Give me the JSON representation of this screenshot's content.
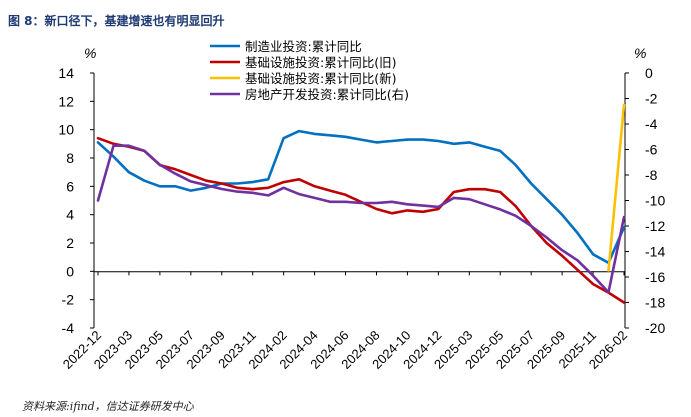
{
  "figure": {
    "title": "图 8：新口径下，基建增速也有明显回升",
    "source": "资料来源:ifind，信达证券研发中心"
  },
  "chart_data": {
    "type": "line",
    "title": "新口径下，基建增速也有明显回升",
    "left_axis": {
      "unit": "%",
      "ylim": [
        -4,
        14
      ],
      "ticks": [
        -4,
        -2,
        0,
        2,
        4,
        6,
        8,
        10,
        12,
        14
      ]
    },
    "right_axis": {
      "unit": "%",
      "ylim": [
        -20,
        0
      ],
      "ticks": [
        -20,
        -18,
        -16,
        -14,
        -12,
        -10,
        -8,
        -6,
        -4,
        -2,
        0
      ]
    },
    "x_tick_labels": [
      "2022-12",
      "2023-03",
      "2023-05",
      "2023-07",
      "2023-09",
      "2023-11",
      "2024-02",
      "2024-04",
      "2024-06",
      "2024-08",
      "2024-10",
      "2024-12",
      "2025-03",
      "2025-05",
      "2025-07",
      "2025-09",
      "2025-11",
      "2026-02"
    ],
    "x": [
      "2022-12",
      "2023-02",
      "2023-03",
      "2023-04",
      "2023-05",
      "2023-06",
      "2023-07",
      "2023-08",
      "2023-09",
      "2023-10",
      "2023-11",
      "2023-12",
      "2024-02",
      "2024-03",
      "2024-04",
      "2024-05",
      "2024-06",
      "2024-07",
      "2024-08",
      "2024-09",
      "2024-10",
      "2024-11",
      "2024-12",
      "2025-02",
      "2025-03",
      "2025-04",
      "2025-05",
      "2025-06",
      "2025-07",
      "2025-08",
      "2025-09",
      "2025-10",
      "2025-11",
      "2025-12",
      "2026-02"
    ],
    "series": [
      {
        "name": "制造业投资:累计同比",
        "color": "#0070c0",
        "axis": "left",
        "values": [
          9.1,
          8.1,
          7.0,
          6.4,
          6.0,
          6.0,
          5.7,
          5.9,
          6.2,
          6.2,
          6.3,
          6.5,
          9.4,
          9.9,
          9.7,
          9.6,
          9.5,
          9.3,
          9.1,
          9.2,
          9.3,
          9.3,
          9.2,
          9.0,
          9.1,
          8.8,
          8.5,
          7.5,
          6.2,
          5.1,
          4.0,
          2.7,
          1.2,
          0.6,
          3.1
        ]
      },
      {
        "name": "基础设施投资:累计同比(旧)",
        "color": "#c00000",
        "axis": "left",
        "values": [
          9.4,
          9.0,
          8.8,
          8.5,
          7.5,
          7.2,
          6.8,
          6.4,
          6.2,
          5.9,
          5.8,
          5.9,
          6.3,
          6.5,
          6.0,
          5.7,
          5.4,
          4.9,
          4.4,
          4.1,
          4.3,
          4.2,
          4.4,
          5.6,
          5.8,
          5.8,
          5.6,
          4.6,
          3.2,
          2.0,
          1.1,
          0.1,
          -0.9,
          -1.5,
          -2.2
        ]
      },
      {
        "name": "基础设施投资:累计同比(新)",
        "color": "#ffc000",
        "axis": "right",
        "values": [
          null,
          null,
          null,
          null,
          null,
          null,
          null,
          null,
          null,
          null,
          null,
          null,
          null,
          null,
          null,
          null,
          null,
          null,
          null,
          null,
          null,
          null,
          null,
          null,
          null,
          null,
          null,
          null,
          null,
          null,
          null,
          null,
          null,
          -15.5,
          -2.5
        ]
      },
      {
        "name": "房地产开发投资:累计同比(右)",
        "color": "#7030a0",
        "axis": "right",
        "values": [
          -10.0,
          -5.7,
          -5.7,
          -6.1,
          -7.2,
          -7.9,
          -8.5,
          -8.8,
          -9.1,
          -9.3,
          -9.4,
          -9.6,
          -9.0,
          -9.5,
          -9.8,
          -10.1,
          -10.1,
          -10.2,
          -10.2,
          -10.1,
          -10.3,
          -10.4,
          -10.5,
          -9.8,
          -9.9,
          -10.3,
          -10.7,
          -11.2,
          -12.0,
          -12.9,
          -13.9,
          -14.7,
          -15.9,
          -17.2,
          -11.3
        ]
      }
    ]
  }
}
